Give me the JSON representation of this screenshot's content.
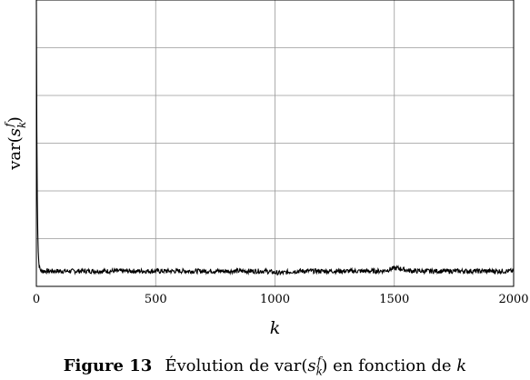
{
  "chart_data": {
    "type": "line",
    "xlabel": "k",
    "ylabel": {
      "prefix": "var(",
      "var": "s",
      "sub": "k",
      "sup": "f",
      "suffix": ")"
    },
    "xlim": [
      0,
      2000
    ],
    "ylim": [
      0,
      6
    ],
    "xticks": [
      0,
      500,
      1000,
      1500,
      2000
    ],
    "ytick_labels_shown": false,
    "grid": true,
    "series": [
      {
        "color": "#000000",
        "peak": {
          "x": 0,
          "y": 6.0
        },
        "decay_rate": 0.33,
        "baseline": 0.32,
        "noise_amplitude": 0.05,
        "baseline_bumps": [
          {
            "x": 1510,
            "y": 0.38
          },
          {
            "x": 1020,
            "y": 0.28
          }
        ]
      }
    ]
  },
  "caption": {
    "figure_label": "Figure 13",
    "text_before": "Évolution de var(",
    "var": "s",
    "sub": "k",
    "sup": "f",
    "text_after": ") en fonction de ",
    "text_end": "k"
  }
}
